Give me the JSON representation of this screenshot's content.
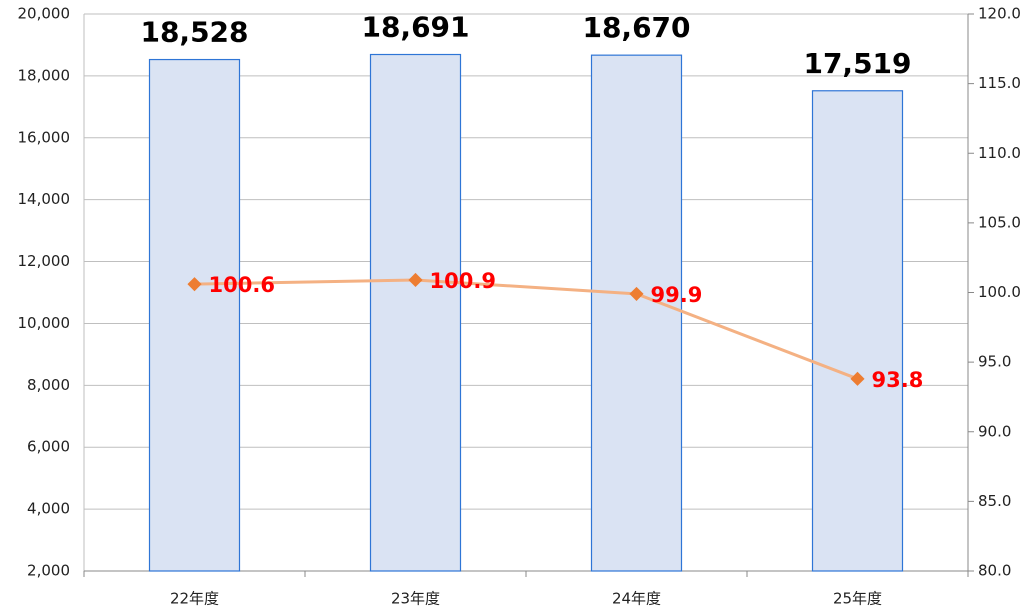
{
  "chart_data": {
    "type": "bar",
    "categories": [
      "22年度",
      "23年度",
      "24年度",
      "25年度"
    ],
    "series": [
      {
        "type": "bar",
        "color": "#dae3f3",
        "edge_color": "#2e75d6",
        "values": [
          18528,
          18691,
          18670,
          17519
        ],
        "value_labels": [
          "18,528",
          "18,691",
          "18,670",
          "17,519"
        ]
      },
      {
        "type": "line",
        "axis": "y2",
        "color": "#f4b183",
        "marker_color": "#ed7d31",
        "values": [
          100.6,
          100.9,
          99.9,
          93.8
        ]
      }
    ],
    "ylim": [
      2000,
      20000
    ],
    "yticks": [
      {
        "value": 2000,
        "label": "2,000"
      },
      {
        "value": 4000,
        "label": "4,000"
      },
      {
        "value": 6000,
        "label": "6,000"
      },
      {
        "value": 8000,
        "label": "8,000"
      },
      {
        "value": 10000,
        "label": "10,000"
      },
      {
        "value": 12000,
        "label": "12,000"
      },
      {
        "value": 14000,
        "label": "14,000"
      },
      {
        "value": 16000,
        "label": "16,000"
      },
      {
        "value": 18000,
        "label": "18,000"
      },
      {
        "value": 20000,
        "label": "20,000"
      }
    ],
    "y2lim": [
      80,
      120
    ],
    "y2ticks": [
      {
        "value": 80,
        "label": "80.0"
      },
      {
        "value": 85,
        "label": "85.0"
      },
      {
        "value": 90,
        "label": "90.0"
      },
      {
        "value": 95,
        "label": "95.0"
      },
      {
        "value": 100,
        "label": "100.0"
      },
      {
        "value": 105,
        "label": "105.0"
      },
      {
        "value": 110,
        "label": "110.0"
      },
      {
        "value": 115,
        "label": "115.0"
      },
      {
        "value": 120,
        "label": "120.0"
      }
    ],
    "grid": true
  }
}
